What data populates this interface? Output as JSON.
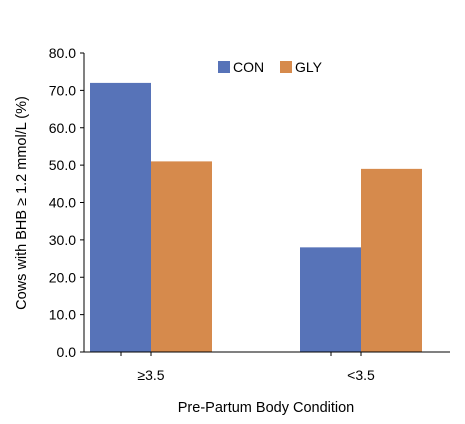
{
  "chart_data": {
    "type": "bar",
    "categories": [
      "≥3.5",
      "<3.5"
    ],
    "series": [
      {
        "name": "CON",
        "values": [
          72.0,
          28.0
        ],
        "color": "#5773b8"
      },
      {
        "name": "GLY",
        "values": [
          51.0,
          49.0
        ],
        "color": "#d68a4c"
      }
    ],
    "xlabel": "Pre-Partum Body Condition",
    "ylabel": "Cows with BHB ≥ 1.2 mmol/L (%)",
    "ylim": [
      0,
      80
    ],
    "yticks": [
      "0.0",
      "10.0",
      "20.0",
      "30.0",
      "40.0",
      "50.0",
      "60.0",
      "70.0",
      "80.0"
    ],
    "grid": false,
    "legend_position": "top-center"
  }
}
